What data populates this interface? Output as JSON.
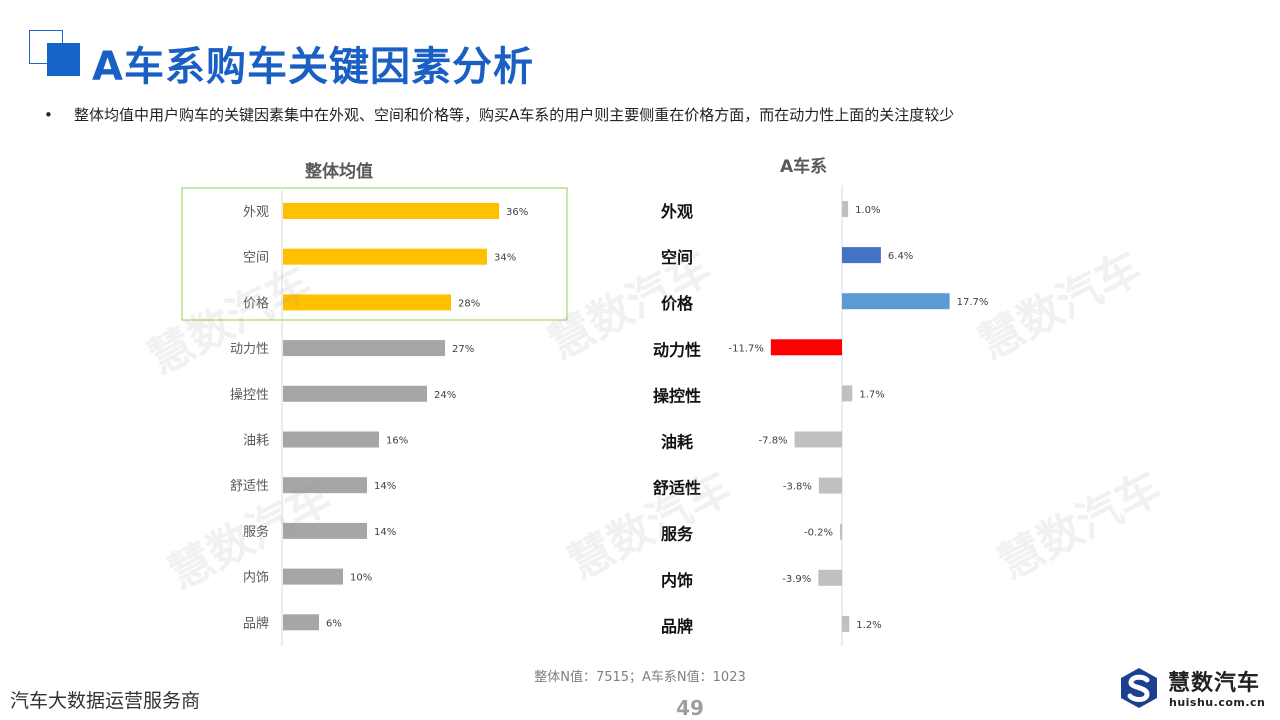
{
  "title": "A车系购车关键因素分析",
  "bullet": "整体均值中用户购车的关键因素集中在外观、空间和价格等，购买A车系的用户则主要侧重在价格方面，而在动力性上面的关注度较少",
  "watermark_text": "慧数汽车",
  "footnote": "整体N值：7515；A车系N值：1023",
  "tagline": "汽车大数据运营服务商",
  "page_number": "49",
  "logo": {
    "name": "慧数汽车",
    "url": "huishu.com.cn",
    "icon": "huishu-logo-icon"
  },
  "colors": {
    "title": "#1a5fc4",
    "bar_highlight": "#ffc000",
    "bar_gray": "#a6a6a6",
    "bar_light_gray": "#c0c0c0",
    "bar_blue_dark": "#4472c4",
    "bar_blue_light": "#5b9bd5",
    "bar_red": "#ff0000",
    "highlight_box": "#92d050"
  },
  "chart_data": [
    {
      "type": "bar",
      "orientation": "horizontal",
      "title": "整体均值",
      "categories": [
        "外观",
        "空间",
        "价格",
        "动力性",
        "操控性",
        "油耗",
        "舒适性",
        "服务",
        "内饰",
        "品牌"
      ],
      "values": [
        36,
        34,
        28,
        27,
        24,
        16,
        14,
        14,
        10,
        6
      ],
      "labels": [
        "36%",
        "34%",
        "28%",
        "27%",
        "24%",
        "16%",
        "14%",
        "14%",
        "10%",
        "6%"
      ],
      "unit": "%",
      "xlim": [
        0,
        50
      ],
      "highlighted_categories": [
        "外观",
        "空间",
        "价格"
      ],
      "grid": false,
      "legend": "none"
    },
    {
      "type": "bar",
      "orientation": "horizontal",
      "title": "A车系",
      "categories": [
        "外观",
        "空间",
        "价格",
        "动力性",
        "操控性",
        "油耗",
        "舒适性",
        "服务",
        "内饰",
        "品牌"
      ],
      "values": [
        1.0,
        6.4,
        17.7,
        -11.7,
        1.7,
        -7.8,
        -3.8,
        -0.2,
        -3.9,
        1.2
      ],
      "labels": [
        "1.0%",
        "6.4%",
        "17.7%",
        "-11.7%",
        "1.7%",
        "-7.8%",
        "-3.8%",
        "-0.2%",
        "-3.9%",
        "1.2%"
      ],
      "unit": "%",
      "xlim": [
        -13,
        20
      ],
      "bar_colors": [
        "#c0c0c0",
        "#4472c4",
        "#5b9bd5",
        "#ff0000",
        "#c0c0c0",
        "#c0c0c0",
        "#c0c0c0",
        "#c0c0c0",
        "#c0c0c0",
        "#c0c0c0"
      ],
      "grid": false,
      "legend": "none"
    }
  ]
}
